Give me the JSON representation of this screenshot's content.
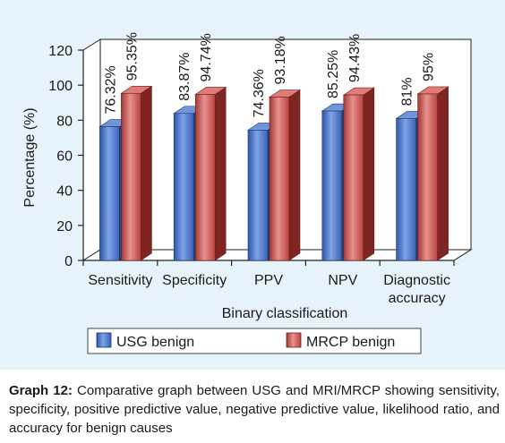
{
  "chart_data": {
    "type": "bar",
    "categories": [
      "Sensitivity",
      "Specificity",
      "PPV",
      "NPV",
      "Diagnostic accuracy"
    ],
    "category_lines": [
      [
        "Sensitivity"
      ],
      [
        "Specificity"
      ],
      [
        "PPV"
      ],
      [
        "NPV"
      ],
      [
        "Diagnostic",
        "accuracy"
      ]
    ],
    "series": [
      {
        "name": "USG benign",
        "values": [
          76.32,
          83.87,
          74.36,
          85.25,
          81
        ],
        "labels": [
          "76.32%",
          "83.87%",
          "74.36%",
          "85.25%",
          "81%"
        ],
        "color": "#4472c4"
      },
      {
        "name": "MRCP benign",
        "values": [
          95.35,
          94.74,
          93.18,
          94.43,
          95
        ],
        "labels": [
          "95.35%",
          "94.74%",
          "93.18%",
          "94.43%",
          "95%"
        ],
        "color": "#c0504d"
      }
    ],
    "xlabel": "Binary classification",
    "ylabel": "Percentage (%)",
    "ylim": [
      0,
      120
    ],
    "yticks": [
      0,
      20,
      40,
      60,
      80,
      100,
      120
    ],
    "grid": false,
    "legend_position": "bottom"
  },
  "caption": {
    "label": "Graph 12:",
    "text": "Comparative graph between USG and MRI/MRCP showing sensitivity, specificity, positive predictive value, negative predictive value, likelihood ratio, and accuracy for benign causes"
  }
}
